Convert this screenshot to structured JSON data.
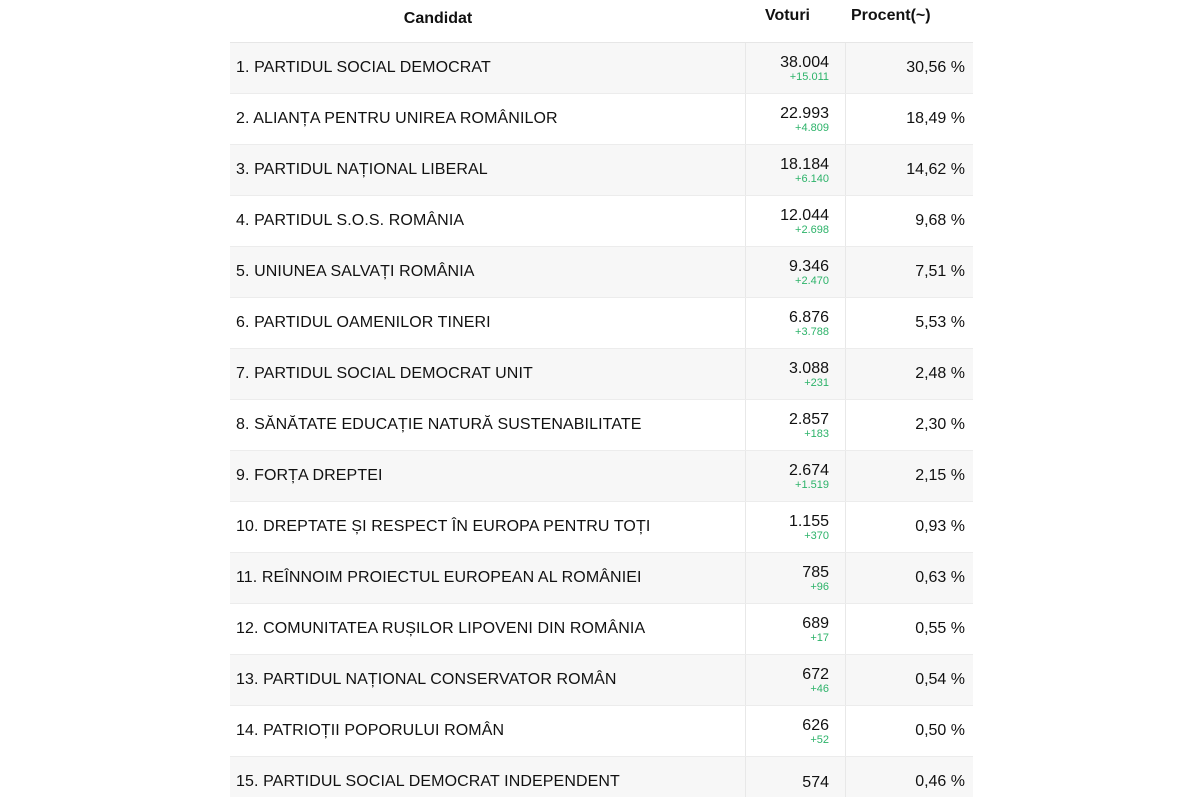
{
  "header": {
    "candidate": "Candidat",
    "votes": "Voturi",
    "percent": "Procent(~)"
  },
  "rows": [
    {
      "name": "1. PARTIDUL SOCIAL DEMOCRAT",
      "votes": "38.004",
      "delta": "+15.011",
      "percent": "30,56 %"
    },
    {
      "name": "2. ALIANȚA PENTRU UNIREA ROMÂNILOR",
      "votes": "22.993",
      "delta": "+4.809",
      "percent": "18,49 %"
    },
    {
      "name": "3. PARTIDUL NAȚIONAL LIBERAL",
      "votes": "18.184",
      "delta": "+6.140",
      "percent": "14,62 %"
    },
    {
      "name": "4. PARTIDUL S.O.S. ROMÂNIA",
      "votes": "12.044",
      "delta": "+2.698",
      "percent": "9,68 %"
    },
    {
      "name": "5. UNIUNEA SALVAȚI ROMÂNIA",
      "votes": "9.346",
      "delta": "+2.470",
      "percent": "7,51 %"
    },
    {
      "name": "6. PARTIDUL OAMENILOR TINERI",
      "votes": "6.876",
      "delta": "+3.788",
      "percent": "5,53 %"
    },
    {
      "name": "7. PARTIDUL SOCIAL DEMOCRAT UNIT",
      "votes": "3.088",
      "delta": "+231",
      "percent": "2,48 %"
    },
    {
      "name": "8. SĂNĂTATE EDUCAȚIE NATURĂ SUSTENABILITATE",
      "votes": "2.857",
      "delta": "+183",
      "percent": "2,30 %"
    },
    {
      "name": "9. FORȚA DREPTEI",
      "votes": "2.674",
      "delta": "+1.519",
      "percent": "2,15 %"
    },
    {
      "name": "10. DREPTATE ȘI RESPECT ÎN EUROPA PENTRU TOȚI",
      "votes": "1.155",
      "delta": "+370",
      "percent": "0,93 %"
    },
    {
      "name": "11. REÎNNOIM PROIECTUL EUROPEAN AL ROMÂNIEI",
      "votes": "785",
      "delta": "+96",
      "percent": "0,63 %"
    },
    {
      "name": "12. COMUNITATEA RUȘILOR LIPOVENI DIN ROMÂNIA",
      "votes": "689",
      "delta": "+17",
      "percent": "0,55 %"
    },
    {
      "name": "13. PARTIDUL NAȚIONAL CONSERVATOR ROMÂN",
      "votes": "672",
      "delta": "+46",
      "percent": "0,54 %"
    },
    {
      "name": "14. PATRIOȚII POPORULUI ROMÂN",
      "votes": "626",
      "delta": "+52",
      "percent": "0,50 %"
    },
    {
      "name": "15. PARTIDUL SOCIAL DEMOCRAT INDEPENDENT",
      "votes": "574",
      "delta": "",
      "percent": "0,46 %"
    }
  ],
  "colors": {
    "delta": "#2db36a",
    "row_alt": "#f7f7f7"
  }
}
